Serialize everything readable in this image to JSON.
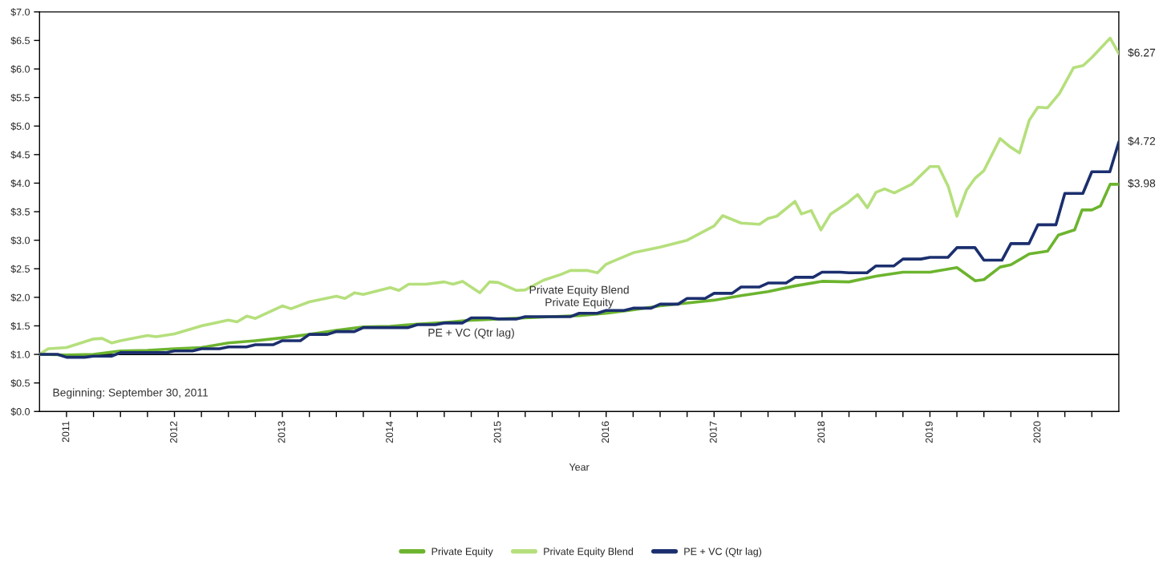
{
  "chart_data": {
    "type": "line",
    "xlabel": "Year",
    "xlim": [
      2010.75,
      2020.75
    ],
    "ylim": [
      0,
      7
    ],
    "xticks": [
      {
        "value": 2011,
        "label": "2011"
      },
      {
        "value": 2011.25,
        "label": null
      },
      {
        "value": 2011.5,
        "label": null
      },
      {
        "value": 2011.75,
        "label": null
      },
      {
        "value": 2012,
        "label": "2012"
      },
      {
        "value": 2012.25,
        "label": null
      },
      {
        "value": 2012.5,
        "label": null
      },
      {
        "value": 2012.75,
        "label": null
      },
      {
        "value": 2013,
        "label": "2013"
      },
      {
        "value": 2013.25,
        "label": null
      },
      {
        "value": 2013.5,
        "label": null
      },
      {
        "value": 2013.75,
        "label": null
      },
      {
        "value": 2014,
        "label": "2014"
      },
      {
        "value": 2014.25,
        "label": null
      },
      {
        "value": 2014.5,
        "label": null
      },
      {
        "value": 2014.75,
        "label": null
      },
      {
        "value": 2015,
        "label": "2015"
      },
      {
        "value": 2015.25,
        "label": null
      },
      {
        "value": 2015.5,
        "label": null
      },
      {
        "value": 2015.75,
        "label": null
      },
      {
        "value": 2016,
        "label": "2016"
      },
      {
        "value": 2016.25,
        "label": null
      },
      {
        "value": 2016.5,
        "label": null
      },
      {
        "value": 2016.75,
        "label": null
      },
      {
        "value": 2017,
        "label": "2017"
      },
      {
        "value": 2017.25,
        "label": null
      },
      {
        "value": 2017.5,
        "label": null
      },
      {
        "value": 2017.75,
        "label": null
      },
      {
        "value": 2018,
        "label": "2018"
      },
      {
        "value": 2018.25,
        "label": null
      },
      {
        "value": 2018.5,
        "label": null
      },
      {
        "value": 2018.75,
        "label": null
      },
      {
        "value": 2019,
        "label": "2019"
      },
      {
        "value": 2019.25,
        "label": null
      },
      {
        "value": 2019.5,
        "label": null
      },
      {
        "value": 2019.75,
        "label": null
      },
      {
        "value": 2020,
        "label": "2020"
      },
      {
        "value": 2020.25,
        "label": null
      },
      {
        "value": 2020.5,
        "label": null
      }
    ],
    "yticks": [
      {
        "value": 0,
        "label": "$0.0"
      },
      {
        "value": 0.5,
        "label": "$0.5"
      },
      {
        "value": 1,
        "label": "$1.0"
      },
      {
        "value": 1.5,
        "label": "$1.5"
      },
      {
        "value": 2,
        "label": "$2.0"
      },
      {
        "value": 2.5,
        "label": "$2.5"
      },
      {
        "value": 3,
        "label": "$3.0"
      },
      {
        "value": 3.5,
        "label": "$3.5"
      },
      {
        "value": 4,
        "label": "$4.0"
      },
      {
        "value": 4.5,
        "label": "$4.5"
      },
      {
        "value": 5,
        "label": "$5.0"
      },
      {
        "value": 5.5,
        "label": "$5.5"
      },
      {
        "value": 6,
        "label": "$6.0"
      },
      {
        "value": 6.5,
        "label": "$6.5"
      },
      {
        "value": 7,
        "label": "$7.0"
      }
    ],
    "grid": false,
    "legend": "bottom",
    "marker": "none",
    "line_style": "solid",
    "ref_lines": [
      {
        "axis": "y",
        "value": 1.0,
        "color": "#000000"
      }
    ],
    "annotations": [
      "Beginning: September 30, 2011",
      "Private Equity Blend",
      "Private Equity",
      "PE + VC (Qtr lag)"
    ],
    "series": [
      {
        "name": "Private Equity",
        "color": "#6cb42e",
        "x": [
          2010.75,
          2011.0,
          2011.25,
          2011.5,
          2011.75,
          2012.0,
          2012.25,
          2012.5,
          2012.75,
          2013.0,
          2013.25,
          2013.5,
          2013.75,
          2014.0,
          2014.25,
          2014.5,
          2014.75,
          2015.0,
          2015.25,
          2015.5,
          2015.75,
          2016.0,
          2016.25,
          2016.5,
          2016.75,
          2017.0,
          2017.25,
          2017.5,
          2017.75,
          2018.0,
          2018.25,
          2018.5,
          2018.75,
          2019.0,
          2019.25,
          2019.42,
          2019.5,
          2019.65,
          2019.75,
          2019.92,
          2020.09,
          2020.19,
          2020.34,
          2020.41,
          2020.5,
          2020.58,
          2020.67,
          2020.75
        ],
        "values": [
          1.0,
          0.99,
          1.0,
          1.06,
          1.07,
          1.1,
          1.12,
          1.2,
          1.24,
          1.29,
          1.35,
          1.42,
          1.48,
          1.49,
          1.53,
          1.56,
          1.6,
          1.62,
          1.64,
          1.66,
          1.68,
          1.72,
          1.78,
          1.85,
          1.9,
          1.95,
          2.03,
          2.1,
          2.2,
          2.28,
          2.27,
          2.37,
          2.44,
          2.44,
          2.52,
          2.29,
          2.31,
          2.53,
          2.57,
          2.76,
          2.81,
          3.09,
          3.18,
          3.53,
          3.53,
          3.6,
          3.98,
          3.98
        ],
        "value_labels": [
          null,
          null,
          null,
          null,
          null,
          null,
          null,
          null,
          null,
          null,
          null,
          null,
          null,
          null,
          null,
          null,
          null,
          null,
          null,
          null,
          null,
          null,
          null,
          null,
          null,
          null,
          null,
          null,
          null,
          null,
          null,
          null,
          null,
          null,
          null,
          null,
          null,
          null,
          null,
          null,
          null,
          null,
          null,
          null,
          null,
          null,
          null,
          "$3.98"
        ]
      },
      {
        "name": "Private Equity Blend",
        "color": "#b5df7c",
        "x": [
          2010.75,
          2010.83,
          2011.0,
          2011.25,
          2011.33,
          2011.42,
          2011.5,
          2011.75,
          2011.83,
          2012.0,
          2012.25,
          2012.5,
          2012.58,
          2012.67,
          2012.75,
          2013.0,
          2013.08,
          2013.25,
          2013.5,
          2013.58,
          2013.67,
          2013.75,
          2014.0,
          2014.08,
          2014.17,
          2014.33,
          2014.5,
          2014.58,
          2014.67,
          2014.83,
          2014.92,
          2015.0,
          2015.17,
          2015.25,
          2015.42,
          2015.58,
          2015.67,
          2015.83,
          2015.92,
          2016.0,
          2016.25,
          2016.5,
          2016.75,
          2017.0,
          2017.08,
          2017.25,
          2017.42,
          2017.5,
          2017.58,
          2017.75,
          2017.81,
          2017.9,
          2017.99,
          2018.08,
          2018.24,
          2018.33,
          2018.42,
          2018.5,
          2018.58,
          2018.67,
          2018.83,
          2019.0,
          2019.08,
          2019.17,
          2019.25,
          2019.34,
          2019.42,
          2019.5,
          2019.65,
          2019.74,
          2019.83,
          2019.92,
          2020.0,
          2020.09,
          2020.2,
          2020.33,
          2020.42,
          2020.5,
          2020.67,
          2020.75
        ],
        "values": [
          1.0,
          1.1,
          1.12,
          1.27,
          1.28,
          1.2,
          1.24,
          1.33,
          1.31,
          1.36,
          1.5,
          1.6,
          1.57,
          1.67,
          1.63,
          1.85,
          1.8,
          1.92,
          2.02,
          1.98,
          2.08,
          2.05,
          2.17,
          2.12,
          2.23,
          2.23,
          2.27,
          2.23,
          2.28,
          2.08,
          2.27,
          2.26,
          2.12,
          2.13,
          2.3,
          2.4,
          2.47,
          2.47,
          2.43,
          2.58,
          2.78,
          2.88,
          3.0,
          3.25,
          3.43,
          3.3,
          3.28,
          3.38,
          3.42,
          3.68,
          3.46,
          3.52,
          3.18,
          3.46,
          3.66,
          3.8,
          3.57,
          3.84,
          3.9,
          3.83,
          3.98,
          4.29,
          4.29,
          3.94,
          3.42,
          3.88,
          4.09,
          4.22,
          4.78,
          4.64,
          4.53,
          5.1,
          5.33,
          5.32,
          5.57,
          6.02,
          6.06,
          6.2,
          6.54,
          6.27
        ],
        "value_labels": [
          null,
          null,
          null,
          null,
          null,
          null,
          null,
          null,
          null,
          null,
          null,
          null,
          null,
          null,
          null,
          null,
          null,
          null,
          null,
          null,
          null,
          null,
          null,
          null,
          null,
          null,
          null,
          null,
          null,
          null,
          null,
          null,
          null,
          null,
          null,
          null,
          null,
          null,
          null,
          null,
          null,
          null,
          null,
          null,
          null,
          null,
          null,
          null,
          null,
          null,
          null,
          null,
          null,
          null,
          null,
          null,
          null,
          null,
          null,
          null,
          null,
          null,
          null,
          null,
          null,
          null,
          null,
          null,
          null,
          null,
          null,
          null,
          null,
          null,
          null,
          null,
          null,
          null,
          null,
          "$6.27"
        ]
      },
      {
        "name": "PE + VC (Qtr lag)",
        "color": "#1b2f6e",
        "x": [
          2010.75,
          2010.917,
          2011.0,
          2011.167,
          2011.25,
          2011.417,
          2011.5,
          2011.667,
          2011.75,
          2011.917,
          2012.0,
          2012.167,
          2012.25,
          2012.417,
          2012.5,
          2012.667,
          2012.75,
          2012.917,
          2013.0,
          2013.167,
          2013.25,
          2013.417,
          2013.5,
          2013.667,
          2013.75,
          2013.917,
          2014.0,
          2014.167,
          2014.25,
          2014.417,
          2014.5,
          2014.667,
          2014.75,
          2014.917,
          2015.0,
          2015.167,
          2015.25,
          2015.417,
          2015.5,
          2015.667,
          2015.75,
          2015.917,
          2016.0,
          2016.167,
          2016.25,
          2016.417,
          2016.5,
          2016.667,
          2016.75,
          2016.917,
          2017.0,
          2017.167,
          2017.25,
          2017.417,
          2017.5,
          2017.667,
          2017.75,
          2017.917,
          2018.0,
          2018.167,
          2018.25,
          2018.417,
          2018.5,
          2018.667,
          2018.75,
          2018.917,
          2019.0,
          2019.167,
          2019.25,
          2019.417,
          2019.5,
          2019.667,
          2019.75,
          2019.917,
          2020.0,
          2020.167,
          2020.25,
          2020.417,
          2020.5,
          2020.667,
          2020.75
        ],
        "values": [
          1.0,
          1.0,
          0.95,
          0.95,
          0.97,
          0.97,
          1.03,
          1.03,
          1.03,
          1.03,
          1.06,
          1.06,
          1.1,
          1.1,
          1.13,
          1.13,
          1.17,
          1.17,
          1.24,
          1.24,
          1.35,
          1.35,
          1.4,
          1.4,
          1.47,
          1.47,
          1.47,
          1.47,
          1.52,
          1.52,
          1.55,
          1.55,
          1.64,
          1.64,
          1.62,
          1.62,
          1.66,
          1.66,
          1.66,
          1.66,
          1.72,
          1.72,
          1.77,
          1.77,
          1.81,
          1.81,
          1.88,
          1.88,
          1.98,
          1.98,
          2.07,
          2.07,
          2.18,
          2.18,
          2.25,
          2.25,
          2.35,
          2.35,
          2.44,
          2.44,
          2.43,
          2.43,
          2.55,
          2.55,
          2.67,
          2.67,
          2.7,
          2.7,
          2.87,
          2.87,
          2.65,
          2.65,
          2.94,
          2.94,
          3.27,
          3.27,
          3.82,
          3.82,
          4.2,
          4.2,
          4.72
        ],
        "value_labels": [
          null,
          null,
          null,
          null,
          null,
          null,
          null,
          null,
          null,
          null,
          null,
          null,
          null,
          null,
          null,
          null,
          null,
          null,
          null,
          null,
          null,
          null,
          null,
          null,
          null,
          null,
          null,
          null,
          null,
          null,
          null,
          null,
          null,
          null,
          null,
          null,
          null,
          null,
          null,
          null,
          null,
          null,
          null,
          null,
          null,
          null,
          null,
          null,
          null,
          null,
          null,
          null,
          null,
          null,
          null,
          null,
          null,
          null,
          null,
          null,
          null,
          null,
          null,
          null,
          null,
          null,
          null,
          null,
          null,
          null,
          null,
          null,
          null,
          null,
          null,
          null,
          null,
          null,
          null,
          null,
          "$4.72"
        ]
      }
    ]
  }
}
